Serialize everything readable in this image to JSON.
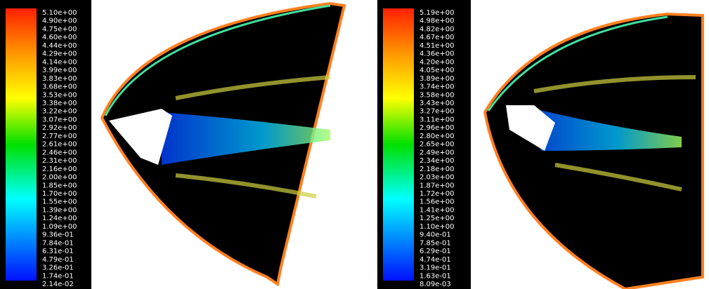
{
  "panels": [
    {
      "colorbar_labels": [
        "5.10e+00",
        "4.90e+00",
        "4.75e+00",
        "4.60e+00",
        "4.44e+00",
        "4.29e+00",
        "4.14e+00",
        "3.99e+00",
        "3.83e+00",
        "3.68e+00",
        "3.53e+00",
        "3.38e+00",
        "3.22e+00",
        "3.07e+00",
        "2.92e+00",
        "2.77e+00",
        "2.61e+00",
        "2.46e+00",
        "2.31e+00",
        "2.16e+00",
        "2.00e+00",
        "1.85e+00",
        "1.70e+00",
        "1.55e+00",
        "1.39e+00",
        "1.24e+00",
        "1.09e+00",
        "9.36e-01",
        "7.84e-01",
        "6.31e-01",
        "4.79e-01",
        "3.26e-01",
        "1.74e-01",
        "2.14e-02"
      ]
    },
    {
      "colorbar_labels": [
        "5.19e+00",
        "4.98e+00",
        "4.82e+00",
        "4.67e+00",
        "4.51e+00",
        "4.36e+00",
        "4.20e+00",
        "4.05e+00",
        "3.89e+00",
        "3.74e+00",
        "3.58e+00",
        "3.43e+00",
        "3.27e+00",
        "3.11e+00",
        "2.96e+00",
        "2.80e+00",
        "2.65e+00",
        "2.49e+00",
        "2.34e+00",
        "2.18e+00",
        "2.03e+00",
        "1.87e+00",
        "1.72e+00",
        "1.56e+00",
        "1.41e+00",
        "1.25e+00",
        "1.10e+00",
        "9.40e-01",
        "7.85e-01",
        "6.29e-01",
        "4.74e-01",
        "3.19e-01",
        "1.63e-01",
        "8.09e-03"
      ]
    }
  ]
}
